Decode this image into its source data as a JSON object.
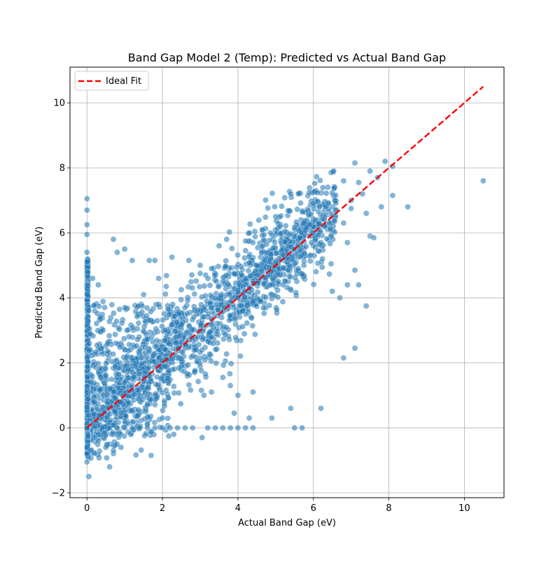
{
  "chart_data": {
    "type": "scatter",
    "title": "Band Gap Model 2 (Temp): Predicted vs Actual Band Gap",
    "xlabel": "Actual Band Gap (eV)",
    "ylabel": "Predicted Band Gap (eV)",
    "xlim": [
      -0.45,
      11.05
    ],
    "ylim": [
      -2.15,
      11.1
    ],
    "xticks": [
      0,
      2,
      4,
      6,
      8,
      10
    ],
    "yticks": [
      -2,
      0,
      2,
      4,
      6,
      8,
      10
    ],
    "grid": true,
    "legend": {
      "position": "upper-left",
      "entries": [
        "Ideal Fit"
      ]
    },
    "colors": {
      "points": "#1f77b4",
      "ideal_line": "#ff0000"
    },
    "series": [
      {
        "type": "scatter",
        "points": [
          [
            0,
            -1.05
          ],
          [
            0.05,
            -1.5
          ],
          [
            0.6,
            -1.2
          ],
          [
            1.7,
            -0.85
          ],
          [
            0,
            7.05
          ],
          [
            0,
            6.7
          ],
          [
            0,
            6.25
          ],
          [
            0,
            5.95
          ],
          [
            0,
            5.4
          ],
          [
            0,
            5.1
          ],
          [
            0.15,
            4.6
          ],
          [
            0.3,
            4.4
          ],
          [
            0.7,
            5.8
          ],
          [
            0.8,
            5.4
          ],
          [
            1.0,
            5.5
          ],
          [
            1.2,
            5.15
          ],
          [
            1.65,
            5.15
          ],
          [
            1.8,
            5.15
          ],
          [
            1.9,
            4.6
          ],
          [
            2.1,
            4.35
          ],
          [
            2.25,
            5.25
          ],
          [
            2.7,
            5.15
          ],
          [
            3.0,
            5.0
          ],
          [
            3.3,
            4.9
          ],
          [
            3.7,
            5.8
          ],
          [
            3.5,
            5.6
          ],
          [
            4.2,
            5.75
          ],
          [
            4.4,
            5.7
          ],
          [
            3.9,
            4.75
          ],
          [
            1.0,
            3.7
          ],
          [
            1.5,
            4.1
          ],
          [
            2.5,
            4.25
          ],
          [
            3.6,
            4.5
          ],
          [
            4.0,
            4.0
          ],
          [
            4.3,
            4.3
          ],
          [
            4.5,
            4.7
          ],
          [
            5.0,
            5.1
          ],
          [
            5.5,
            5.5
          ],
          [
            6.0,
            6.0
          ],
          [
            6.3,
            6.2
          ],
          [
            6.6,
            6.7
          ],
          [
            7.0,
            7.0
          ],
          [
            7.3,
            7.2
          ],
          [
            4.6,
            3.9
          ],
          [
            5.2,
            4.4
          ],
          [
            5.6,
            4.9
          ],
          [
            6.2,
            5.7
          ],
          [
            6.8,
            6.3
          ],
          [
            5.4,
            7.2
          ],
          [
            5.6,
            7.2
          ],
          [
            5.0,
            6.5
          ],
          [
            6.0,
            6.9
          ],
          [
            6.4,
            6.9
          ],
          [
            6.8,
            7.6
          ],
          [
            7.1,
            8.15
          ],
          [
            7.5,
            7.9
          ],
          [
            7.7,
            7.7
          ],
          [
            7.9,
            8.2
          ],
          [
            8.1,
            8.05
          ],
          [
            7.2,
            7.55
          ],
          [
            7.0,
            6.75
          ],
          [
            7.4,
            6.6
          ],
          [
            7.8,
            6.8
          ],
          [
            8.5,
            6.8
          ],
          [
            8.1,
            7.15
          ],
          [
            10.5,
            7.6
          ],
          [
            7.4,
            3.75
          ],
          [
            7.1,
            2.45
          ],
          [
            6.8,
            2.15
          ],
          [
            6.2,
            0.6
          ],
          [
            5.4,
            0.6
          ],
          [
            5.5,
            0.0
          ],
          [
            5.7,
            0.0
          ],
          [
            4.9,
            0.3
          ],
          [
            4.3,
            0.3
          ],
          [
            3.9,
            0.45
          ],
          [
            4.4,
            1.1
          ],
          [
            4.0,
            1.0
          ],
          [
            3.8,
            1.3
          ],
          [
            3.3,
            1.1
          ],
          [
            3.6,
            1.55
          ],
          [
            3.1,
            1.0
          ],
          [
            3.05,
            -0.3
          ],
          [
            2.3,
            -0.2
          ],
          [
            2.0,
            0.3
          ],
          [
            1.6,
            0.1
          ],
          [
            1.0,
            0.2
          ],
          [
            0.9,
            -0.6
          ],
          [
            0.8,
            -0.5
          ],
          [
            0.7,
            -0.7
          ],
          [
            0.3,
            -0.4
          ],
          [
            0.5,
            -0.6
          ],
          [
            0.2,
            -0.3
          ],
          [
            0.0,
            -0.8
          ],
          [
            0.0,
            -0.6
          ],
          [
            0.1,
            -0.7
          ],
          [
            6.5,
            4.2
          ],
          [
            6.7,
            4.0
          ],
          [
            6.9,
            4.4
          ],
          [
            7.2,
            4.4
          ],
          [
            7.1,
            4.85
          ],
          [
            6.9,
            5.7
          ],
          [
            7.5,
            5.9
          ],
          [
            7.6,
            5.85
          ],
          [
            3.2,
            0.0
          ],
          [
            3.4,
            0.0
          ],
          [
            3.6,
            0.0
          ],
          [
            3.8,
            0.0
          ],
          [
            4.0,
            0.0
          ],
          [
            4.2,
            0.0
          ],
          [
            4.4,
            0.0
          ],
          [
            2.8,
            0.0
          ],
          [
            2.6,
            0.0
          ],
          [
            2.4,
            0.0
          ],
          [
            2.2,
            0.0
          ],
          [
            2.0,
            0.0
          ],
          [
            1.8,
            0.0
          ],
          [
            1.6,
            0.0
          ],
          [
            1.4,
            0.0
          ],
          [
            1.2,
            0.0
          ],
          [
            1.0,
            0.0
          ],
          [
            0.8,
            0.0
          ],
          [
            0.6,
            0.0
          ],
          [
            0.4,
            0.0
          ],
          [
            0.2,
            0.0
          ],
          [
            0,
            0.0
          ]
        ]
      },
      {
        "type": "line",
        "name": "Ideal Fit",
        "points": [
          [
            0,
            0
          ],
          [
            10.5,
            10.5
          ]
        ]
      }
    ]
  }
}
